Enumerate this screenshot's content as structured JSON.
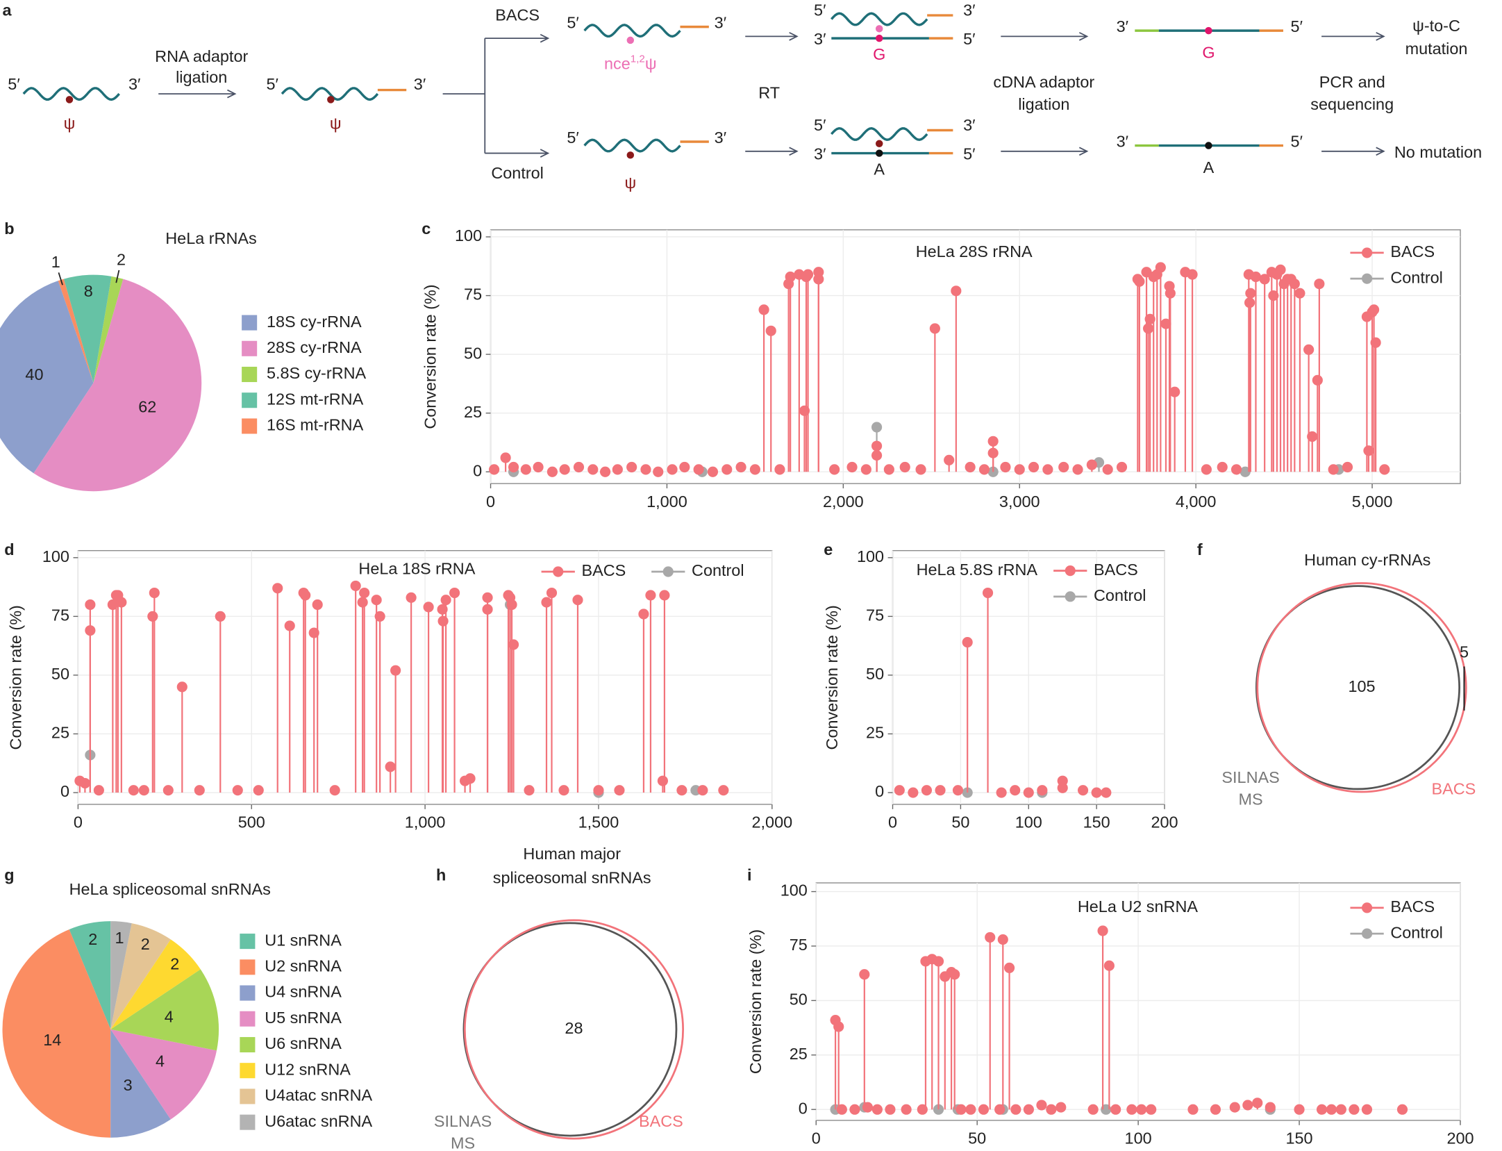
{
  "schematic": {
    "panel": "a",
    "five_prime": "5′",
    "three_prime": "3′",
    "psi": "ψ",
    "adaptor_ligation": [
      "RNA adaptor",
      "ligation"
    ],
    "bacs": "BACS",
    "control": "Control",
    "modified": {
      "base": "nce",
      "sup": "1,2",
      "psi": "ψ"
    },
    "rt": "RT",
    "g": "G",
    "a": "A",
    "cdna_ligation": [
      "cDNA adaptor",
      "ligation"
    ],
    "pcr": [
      "PCR and",
      "sequencing"
    ],
    "bacs_result": [
      "ψ-to-C",
      "mutation"
    ],
    "control_result": "No mutation"
  },
  "chart_data": [
    {
      "type": "pie",
      "panel": "b",
      "title": "HeLa rRNAs",
      "categories": [
        "18S cy-rRNA",
        "28S cy-rRNA",
        "5.8S cy-rRNA",
        "12S mt-rRNA",
        "16S mt-rRNA"
      ],
      "values": [
        40,
        62,
        2,
        8,
        1
      ],
      "colors": [
        "#8d9fcc",
        "#e58dc3",
        "#a8d657",
        "#66c2a5",
        "#fb8d62"
      ]
    },
    {
      "type": "lollipop",
      "panel": "c",
      "title": "HeLa 28S rRNA",
      "ylabel": "Conversion rate (%)",
      "xlim": [
        0,
        5500
      ],
      "ylim": [
        -5,
        103
      ],
      "xticks": [
        0,
        {
          "value": 1000,
          "label": "1,000"
        },
        {
          "value": 2000,
          "label": "2,000"
        },
        {
          "value": 3000,
          "label": "3,000"
        },
        {
          "value": 4000,
          "label": "4,000"
        },
        {
          "value": 5000,
          "label": "5,000"
        }
      ],
      "yticks": [
        0,
        25,
        50,
        75,
        100
      ],
      "grid": true,
      "legend": "upper right",
      "series": [
        {
          "name": "BACS",
          "color": "#f2737a",
          "x": [
            20,
            85,
            130,
            200,
            270,
            350,
            420,
            500,
            580,
            650,
            720,
            800,
            880,
            950,
            1030,
            1100,
            1180,
            1260,
            1340,
            1420,
            1500,
            1550,
            1590,
            1640,
            1690,
            1700,
            1750,
            1780,
            1790,
            1800,
            1860,
            1860,
            1950,
            2050,
            2130,
            2190,
            2190,
            2260,
            2350,
            2440,
            2520,
            2600,
            2640,
            2720,
            2800,
            2850,
            2850,
            2920,
            3000,
            3080,
            3160,
            3250,
            3330,
            3410,
            3500,
            3580,
            3670,
            3680,
            3720,
            3730,
            3740,
            3760,
            3780,
            3800,
            3830,
            3850,
            3855,
            3880,
            3940,
            3980,
            4060,
            4150,
            4230,
            4300,
            4305,
            4310,
            4340,
            4390,
            4430,
            4440,
            4460,
            4480,
            4500,
            4520,
            4540,
            4560,
            4590,
            4640,
            4660,
            4690,
            4700,
            4780,
            4860,
            4970,
            4980,
            5000,
            5010,
            5020,
            5070
          ],
          "values": [
            1,
            6,
            2,
            1,
            2,
            0,
            1,
            2,
            1,
            0,
            1,
            2,
            1,
            0,
            1,
            2,
            1,
            0,
            1,
            2,
            1,
            69,
            60,
            1,
            80,
            83,
            84,
            26,
            83,
            84,
            85,
            82,
            1,
            2,
            1,
            11,
            7,
            1,
            2,
            1,
            61,
            5,
            77,
            2,
            1,
            13,
            8,
            2,
            1,
            2,
            1,
            2,
            1,
            3,
            1,
            2,
            82,
            81,
            85,
            61,
            65,
            83,
            84,
            87,
            63,
            79,
            76,
            34,
            85,
            84,
            1,
            2,
            1,
            84,
            72,
            76,
            83,
            82,
            85,
            75,
            84,
            86,
            80,
            82,
            82,
            80,
            76,
            52,
            15,
            39,
            80,
            1,
            2,
            66,
            9,
            68,
            69,
            55,
            1
          ]
        },
        {
          "name": "Control",
          "color": "#a8a8a8",
          "x": [
            130,
            1200,
            2190,
            2850,
            3450,
            4280,
            4810
          ],
          "values": [
            0,
            0,
            19,
            0,
            4,
            0,
            1
          ]
        }
      ]
    },
    {
      "type": "lollipop",
      "panel": "d",
      "title": "HeLa 18S rRNA",
      "ylabel": "Conversion rate (%)",
      "xlim": [
        0,
        2000
      ],
      "ylim": [
        -5,
        103
      ],
      "xticks": [
        0,
        500,
        {
          "value": 1000,
          "label": "1,000"
        },
        {
          "value": 1500,
          "label": "1,500"
        },
        {
          "value": 2000,
          "label": "2,000"
        }
      ],
      "yticks": [
        0,
        25,
        50,
        75,
        100
      ],
      "grid": true,
      "legend": "top",
      "series": [
        {
          "name": "BACS",
          "color": "#f2737a",
          "x": [
            5,
            20,
            35,
            35,
            60,
            100,
            110,
            115,
            125,
            160,
            190,
            215,
            220,
            260,
            300,
            350,
            410,
            460,
            520,
            575,
            610,
            650,
            655,
            680,
            690,
            740,
            800,
            820,
            825,
            860,
            870,
            900,
            915,
            960,
            1010,
            1050,
            1052,
            1060,
            1085,
            1115,
            1130,
            1180,
            1180,
            1240,
            1245,
            1250,
            1255,
            1300,
            1350,
            1365,
            1400,
            1440,
            1500,
            1560,
            1630,
            1650,
            1685,
            1690,
            1740,
            1800,
            1860
          ],
          "values": [
            5,
            4,
            80,
            69,
            1,
            80,
            84,
            84,
            81,
            1,
            1,
            75,
            85,
            1,
            45,
            1,
            75,
            1,
            1,
            87,
            71,
            85,
            84,
            68,
            80,
            1,
            88,
            81,
            85,
            82,
            75,
            11,
            52,
            83,
            79,
            78,
            73,
            82,
            85,
            5,
            6,
            83,
            78,
            84,
            83,
            80,
            63,
            1,
            81,
            85,
            1,
            82,
            1,
            1,
            76,
            84,
            5,
            84,
            1,
            1,
            1
          ]
        },
        {
          "name": "Control",
          "color": "#a8a8a8",
          "x": [
            35,
            1245,
            1500,
            1780
          ],
          "values": [
            16,
            80,
            0,
            1
          ]
        }
      ]
    },
    {
      "type": "lollipop",
      "panel": "e",
      "title": "HeLa 5.8S rRNA",
      "ylabel": "Conversion rate (%)",
      "xlim": [
        0,
        200
      ],
      "ylim": [
        -5,
        103
      ],
      "xticks": [
        0,
        50,
        100,
        150,
        200
      ],
      "yticks": [
        0,
        25,
        50,
        75,
        100
      ],
      "grid": true,
      "legend": "upper right",
      "series": [
        {
          "name": "BACS",
          "color": "#f2737a",
          "x": [
            5,
            15,
            25,
            35,
            48,
            55,
            70,
            80,
            90,
            100,
            110,
            125,
            125,
            140,
            150,
            157
          ],
          "values": [
            1,
            0,
            1,
            1,
            1,
            64,
            85,
            0,
            1,
            0,
            1,
            5,
            2,
            1,
            0,
            0
          ]
        },
        {
          "name": "Control",
          "color": "#a8a8a8",
          "x": [
            55,
            110
          ],
          "values": [
            0,
            0
          ]
        }
      ]
    },
    {
      "type": "venn",
      "panel": "f",
      "title": [
        "Human cy-rRNAs"
      ],
      "sets": [
        {
          "name": [
            "SILNAS",
            "MS"
          ],
          "color": "#555555"
        },
        {
          "name": [
            "BACS"
          ],
          "color": "#f2737a"
        }
      ],
      "intersection": 105,
      "bacs_only": 5
    },
    {
      "type": "pie",
      "panel": "g",
      "title": "HeLa spliceosomal snRNAs",
      "categories": [
        "U1 snRNA",
        "U2 snRNA",
        "U4 snRNA",
        "U5 snRNA",
        "U6 snRNA",
        "U12 snRNA",
        "U4atac snRNA",
        "U6atac snRNA"
      ],
      "values": [
        2,
        14,
        3,
        4,
        4,
        2,
        2,
        1
      ],
      "colors": [
        "#66c2a5",
        "#fb8d62",
        "#8d9fcc",
        "#e58dc3",
        "#a8d657",
        "#fed930",
        "#e4c494",
        "#b3b3b3"
      ]
    },
    {
      "type": "venn",
      "panel": "h",
      "title": [
        "Human major",
        "spliceosomal snRNAs"
      ],
      "sets": [
        {
          "name": [
            "SILNAS",
            "MS"
          ],
          "color": "#555555"
        },
        {
          "name": [
            "BACS"
          ],
          "color": "#f2737a"
        }
      ],
      "intersection": 28
    },
    {
      "type": "lollipop",
      "panel": "i",
      "title": "HeLa U2 snRNA",
      "ylabel": "Conversion rate (%)",
      "xlim": [
        0,
        200
      ],
      "ylim": [
        -5,
        104
      ],
      "xticks": [
        0,
        50,
        100,
        150,
        200
      ],
      "yticks": [
        0,
        25,
        50,
        75,
        100
      ],
      "grid": true,
      "legend": "upper right",
      "series": [
        {
          "name": "BACS",
          "color": "#f2737a",
          "x": [
            6,
            7,
            8,
            12,
            15,
            16,
            19,
            23,
            28,
            33,
            34,
            36,
            38,
            40,
            42,
            43,
            45,
            48,
            52,
            54,
            57,
            58,
            60,
            62,
            66,
            70,
            73,
            76,
            86,
            89,
            91,
            93,
            98,
            101,
            104,
            117,
            124,
            130,
            134,
            137,
            141,
            150,
            157,
            160,
            163,
            167,
            171,
            182
          ],
          "values": [
            41,
            38,
            0,
            0,
            62,
            1,
            0,
            0,
            0,
            0,
            68,
            69,
            68,
            61,
            63,
            62,
            0,
            0,
            0,
            79,
            0,
            78,
            65,
            0,
            0,
            2,
            0,
            1,
            0,
            82,
            66,
            0,
            0,
            0,
            0,
            0,
            0,
            1,
            2,
            3,
            1,
            0,
            0,
            0,
            0,
            0,
            0,
            0
          ]
        },
        {
          "name": "Control",
          "color": "#a8a8a8",
          "x": [
            6,
            15,
            38,
            44,
            58,
            90,
            141
          ],
          "values": [
            0,
            1,
            0,
            0,
            0,
            0,
            0
          ]
        }
      ]
    }
  ]
}
